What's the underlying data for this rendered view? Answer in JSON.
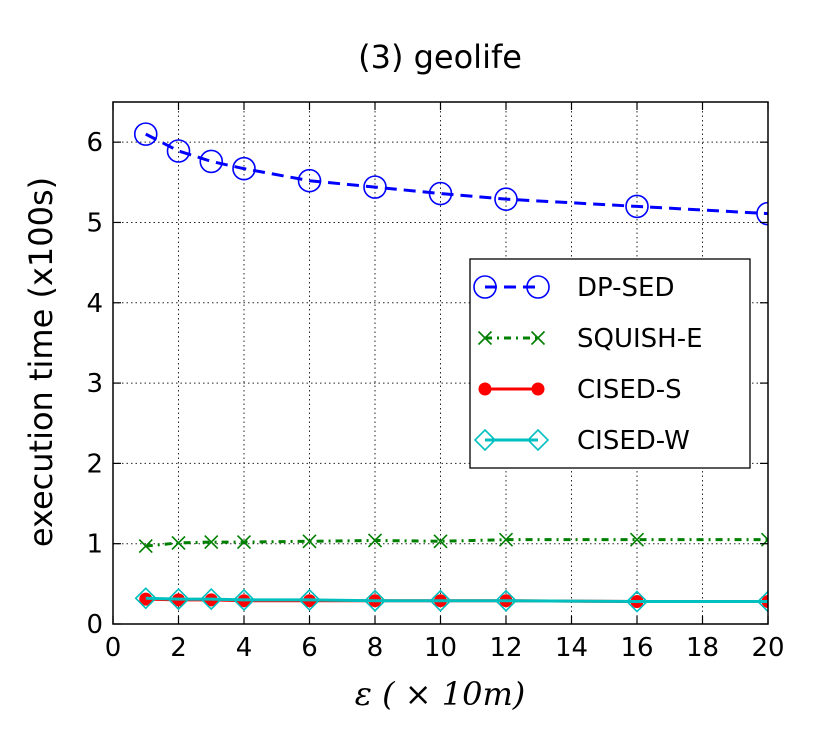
{
  "chart_data": {
    "type": "line",
    "title": "(3) geolife",
    "xlabel": "ε ( × 10m)",
    "ylabel": "execution time (x100s)",
    "xlim": [
      0,
      20
    ],
    "ylim": [
      0,
      6.5
    ],
    "xticks": [
      "0",
      "2",
      "4",
      "6",
      "8",
      "10",
      "12",
      "14",
      "16",
      "18",
      "20"
    ],
    "yticks": [
      "0",
      "1",
      "2",
      "3",
      "4",
      "5",
      "6"
    ],
    "grid": true,
    "legend_position": "center-right",
    "x": [
      1,
      2,
      3,
      4,
      6,
      8,
      10,
      12,
      16,
      20
    ],
    "series": [
      {
        "name": "DP-SED",
        "color": "#0000ff",
        "marker": "circle-open",
        "linestyle": "dashed",
        "values": [
          6.1,
          5.89,
          5.76,
          5.67,
          5.52,
          5.44,
          5.36,
          5.29,
          5.2,
          5.11
        ]
      },
      {
        "name": "SQUISH-E",
        "color": "#008000",
        "marker": "x",
        "linestyle": "dashdot",
        "values": [
          0.97,
          1.01,
          1.02,
          1.02,
          1.03,
          1.04,
          1.03,
          1.05,
          1.05,
          1.05
        ]
      },
      {
        "name": "CISED-S",
        "color": "#ff0000",
        "marker": "circle-filled",
        "linestyle": "solid",
        "values": [
          0.31,
          0.3,
          0.3,
          0.29,
          0.29,
          0.29,
          0.29,
          0.29,
          0.28,
          0.28
        ]
      },
      {
        "name": "CISED-W",
        "color": "#00bfbf",
        "marker": "diamond-open",
        "linestyle": "solid",
        "values": [
          0.32,
          0.31,
          0.31,
          0.3,
          0.3,
          0.29,
          0.29,
          0.29,
          0.28,
          0.28
        ]
      }
    ]
  }
}
